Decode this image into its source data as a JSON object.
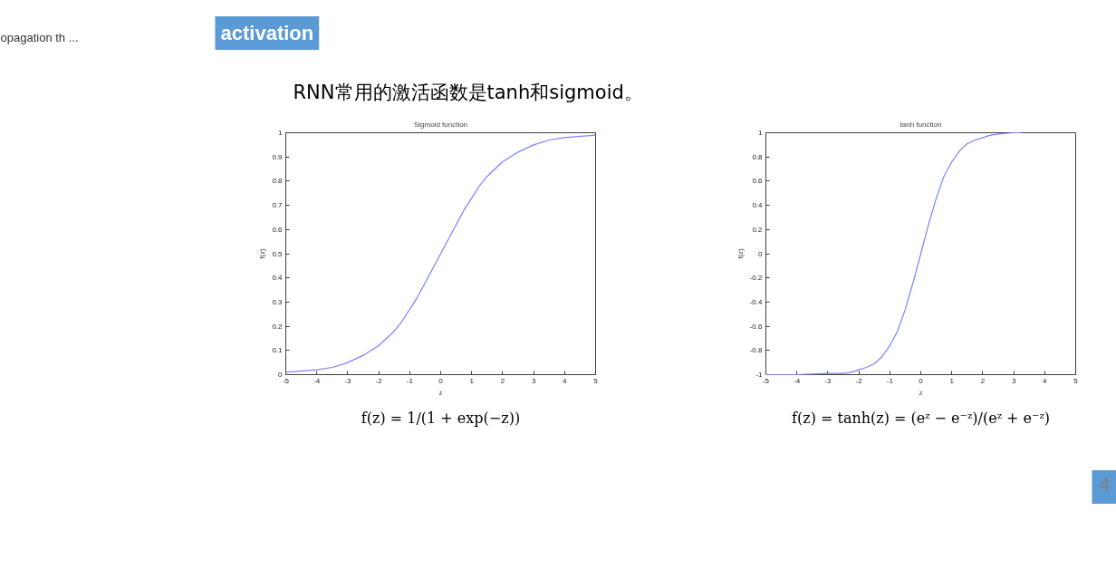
{
  "chart_data": [
    {
      "type": "other",
      "title": "activation",
      "subtitle": "RNN常用的激活函数是tanh和sigmoid。",
      "annotations": [
        "opagation th ..."
      ]
    },
    {
      "type": "line",
      "title": "Sigmoid function",
      "xlabel": "z",
      "ylabel": "f(z)",
      "color": "#7f7fff",
      "x": [
        -5,
        -4,
        -3.5,
        -3,
        -2.5,
        -2,
        -1.75,
        -1.5,
        -1.25,
        -1,
        -0.75,
        -0.5,
        -0.25,
        0,
        0.25,
        0.5,
        0.75,
        1,
        1.25,
        1.5,
        1.75,
        2,
        2.5,
        3,
        3.5,
        4,
        5
      ],
      "values": [
        0.01,
        0.02,
        0.03,
        0.05,
        0.08,
        0.12,
        0.15,
        0.18,
        0.22,
        0.27,
        0.32,
        0.38,
        0.44,
        0.5,
        0.56,
        0.62,
        0.68,
        0.73,
        0.78,
        0.82,
        0.85,
        0.88,
        0.92,
        0.95,
        0.97,
        0.98,
        0.99
      ],
      "xlim": [
        -5,
        5
      ],
      "ylim": [
        0,
        1
      ],
      "xticks": [
        -5,
        -4,
        -3,
        -2,
        -1,
        0,
        1,
        2,
        3,
        4,
        5
      ],
      "yticks": [
        0,
        0.1,
        0.2,
        0.3,
        0.4,
        0.5,
        0.6,
        0.7,
        0.8,
        0.9,
        1
      ],
      "annotations": [
        "f(z) = 1/(1 + exp(−z))"
      ]
    },
    {
      "type": "line",
      "title": "tanh function",
      "xlabel": "z",
      "ylabel": "f(z)",
      "color": "#7f7fff",
      "x": [
        -5,
        -4,
        -3,
        -2.5,
        -2.25,
        -2,
        -1.75,
        -1.5,
        -1.25,
        -1,
        -0.75,
        -0.5,
        -0.25,
        0,
        0.25,
        0.5,
        0.75,
        1,
        1.25,
        1.5,
        1.75,
        2,
        2.25,
        2.5,
        3,
        3.25
      ],
      "values": [
        -1,
        -1,
        -0.99,
        -0.99,
        -0.98,
        -0.96,
        -0.94,
        -0.91,
        -0.85,
        -0.76,
        -0.64,
        -0.46,
        -0.24,
        0,
        0.24,
        0.46,
        0.64,
        0.76,
        0.85,
        0.91,
        0.94,
        0.96,
        0.98,
        0.99,
        1,
        1
      ],
      "xlim": [
        -5,
        5
      ],
      "ylim": [
        -1,
        1
      ],
      "xticks": [
        -5,
        -4,
        -3,
        -2,
        -1,
        0,
        1,
        2,
        3,
        4,
        5
      ],
      "yticks": [
        -1,
        -0.8,
        -0.6,
        -0.4,
        -0.2,
        0,
        0.2,
        0.4,
        0.6,
        0.8,
        1
      ],
      "annotations": [
        "f(z) = tanh(z) = (eᶻ − e⁻ᶻ)/(eᶻ + e⁻ᶻ)"
      ]
    },
    {
      "type": "other",
      "annotations": [
        "4"
      ]
    }
  ]
}
